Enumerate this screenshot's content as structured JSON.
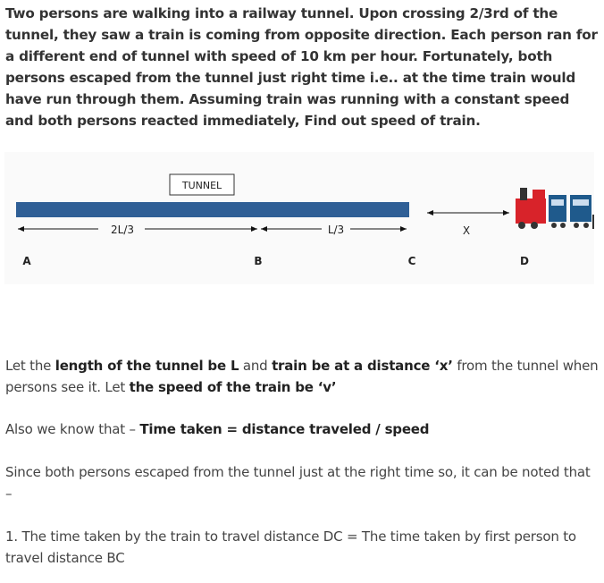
{
  "question": "Two persons are walking into a railway tunnel. Upon crossing 2/3rd of the tunnel, they saw a train is coming from opposite direction. Each person ran for a different end of tunnel with speed of 10 km per hour. Fortunately, both persons escaped from the tunnel just right time i.e.. at the time train would have run through them. Assuming train was running with a constant speed and both persons reacted immediately, Find out speed of train.",
  "figure": {
    "tunnel_label": "TUNNEL",
    "segment_1": "2L/3",
    "segment_2": "L/3",
    "gap": "X",
    "points": [
      "A",
      "B",
      "C",
      "D"
    ]
  },
  "paragraphs": [
    [
      "Let the ",
      "length of the tunnel be L",
      " and ",
      "train be at a distance ‘x’",
      " from the tunnel when persons see it. Let ",
      "the speed of the train be ‘v’"
    ],
    [
      "Also we know that – ",
      "Time taken = distance traveled / speed"
    ],
    [
      "Since both persons escaped from the tunnel just at the right time so, it can be noted that –"
    ],
    [
      "1. The time taken by the train to travel distance DC  = The time taken by first person to travel distance BC"
    ]
  ]
}
